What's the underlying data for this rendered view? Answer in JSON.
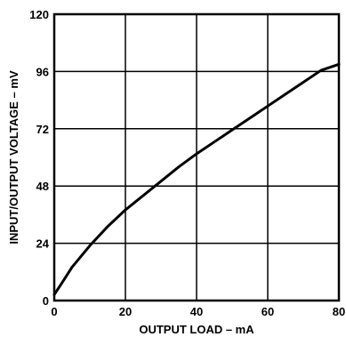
{
  "chart_data": {
    "type": "line",
    "title": "",
    "xlabel": "OUTPUT LOAD – mA",
    "ylabel": "INPUT/OUTPUT VOLTAGE – mV",
    "xlim": [
      0,
      80
    ],
    "ylim": [
      0,
      120
    ],
    "x_ticks": [
      "0",
      "20",
      "40",
      "60",
      "80"
    ],
    "y_ticks": [
      "0",
      "24",
      "48",
      "72",
      "96",
      "120"
    ],
    "grid": true,
    "series": [
      {
        "x": [
          0,
          2,
          5,
          10,
          15,
          20,
          25,
          30,
          35,
          40,
          45,
          50,
          55,
          60,
          65,
          70,
          75,
          80
        ],
        "y": [
          2.5,
          7,
          14,
          23,
          31,
          38,
          44,
          50,
          56,
          61.5,
          66.5,
          71.5,
          76.5,
          81.5,
          86.5,
          91.5,
          96.5,
          99
        ]
      }
    ]
  }
}
